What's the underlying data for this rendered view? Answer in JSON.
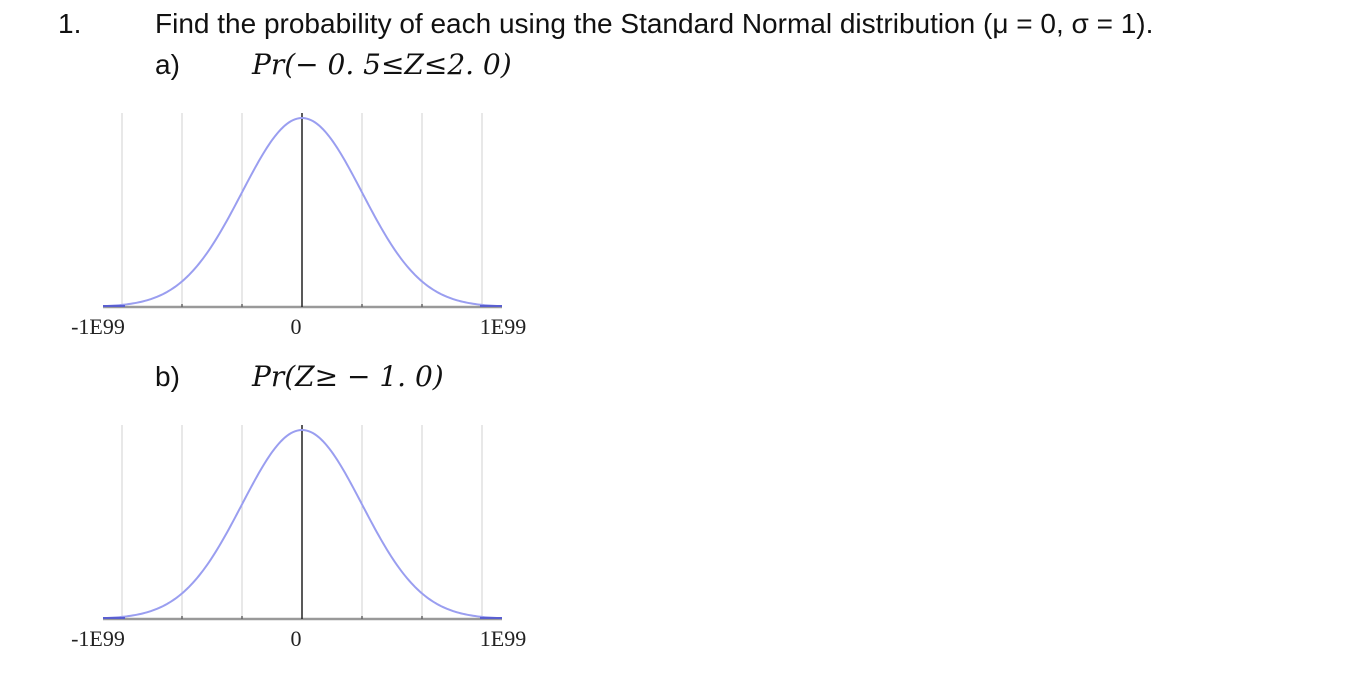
{
  "question": {
    "number": "1.",
    "text": "Find the probability of each using the Standard Normal distribution (μ = 0, σ = 1).",
    "parts": [
      {
        "label": "a)",
        "expression": "Pr(− 0. 5≤Z≤2. 0)",
        "graph": {
          "axis_labels": [
            "-1E99",
            "0",
            "1E99"
          ]
        }
      },
      {
        "label": "b)",
        "expression": "Pr(Z≥ − 1. 0)",
        "graph": {
          "axis_labels": [
            "-1E99",
            "0",
            "1E99"
          ]
        }
      }
    ]
  }
}
